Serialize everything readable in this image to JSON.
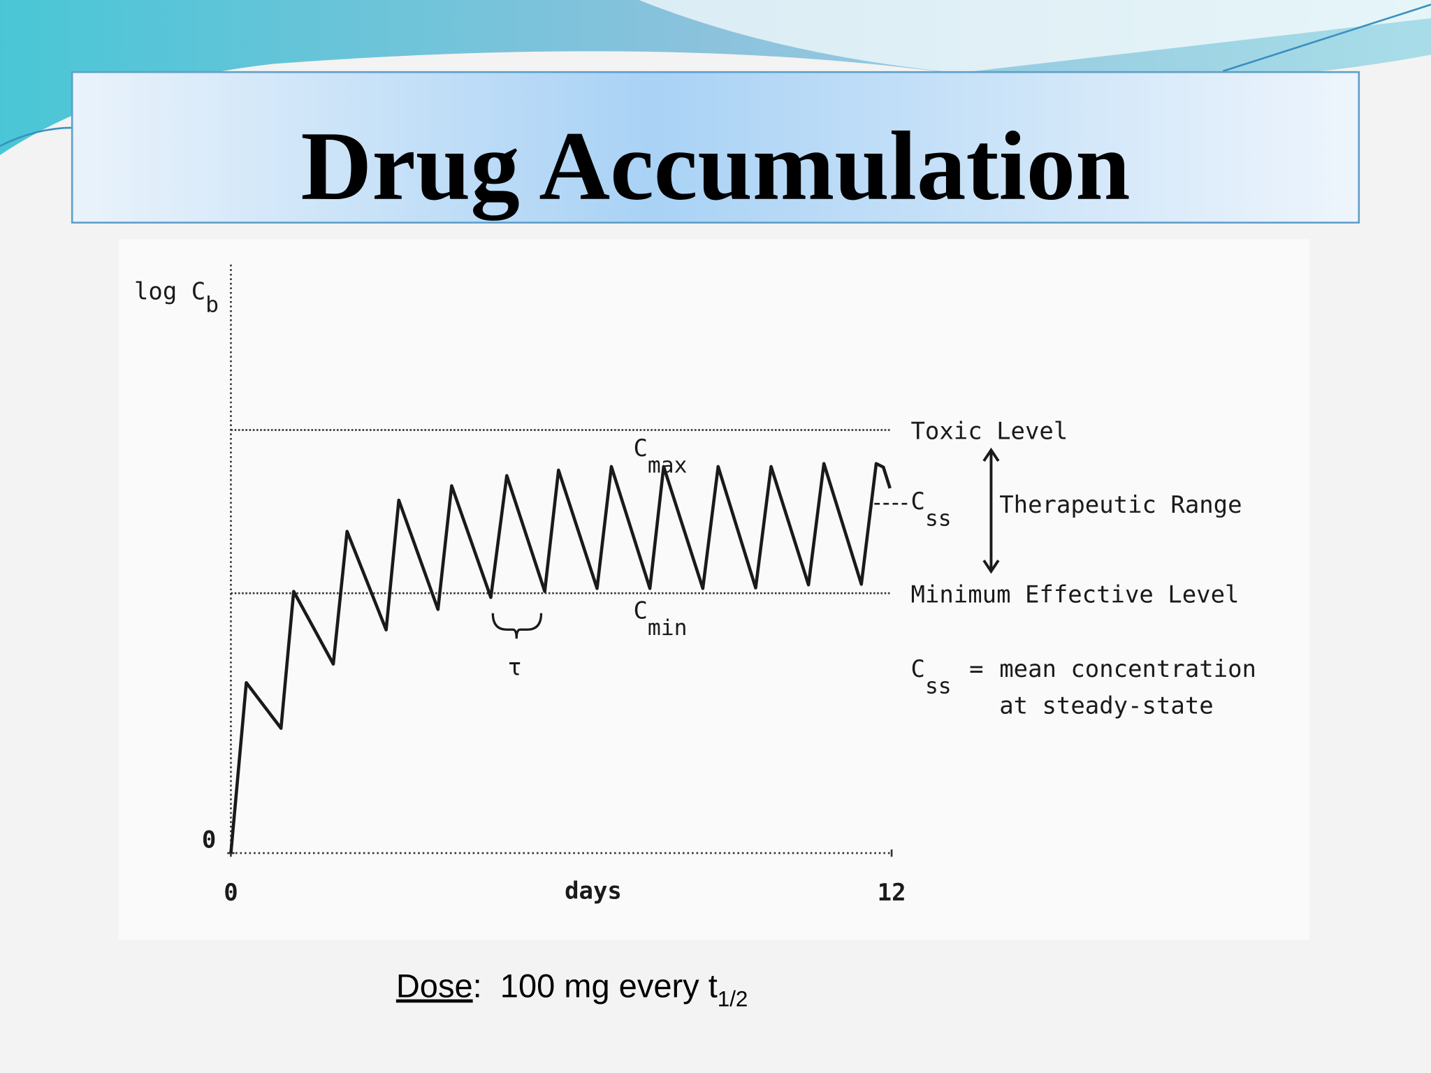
{
  "slide": {
    "title": "Drug Accumulation",
    "footnote": {
      "underlined": "Dose",
      "text": ":  100 mg every t",
      "sub": "1/2"
    }
  },
  "chart_data": {
    "type": "line",
    "y_label": {
      "text": "log C",
      "sub": "b"
    },
    "x_label": "days",
    "xlim": [
      0,
      12
    ],
    "xticks": [
      0,
      12
    ],
    "ylim": [
      0,
      9
    ],
    "yticks": [
      0
    ],
    "x": [
      0,
      0.28,
      0.91,
      1.14,
      1.86,
      2.11,
      2.82,
      3.05,
      3.76,
      4.01,
      4.72,
      5.01,
      5.7,
      5.95,
      6.65,
      6.91,
      7.61,
      7.86,
      8.57,
      8.85,
      9.53,
      9.81,
      10.49,
      10.77,
      11.45,
      11.72,
      11.85,
      11.97
    ],
    "series": [
      {
        "color": "#1a1a1a",
        "values": [
          0,
          2.84,
          2.08,
          4.36,
          3.15,
          5.36,
          3.72,
          5.88,
          4.06,
          6.12,
          4.26,
          6.29,
          4.36,
          6.38,
          4.41,
          6.44,
          4.41,
          6.44,
          4.41,
          6.44,
          4.42,
          6.44,
          4.47,
          6.49,
          4.48,
          6.49,
          6.43,
          6.08
        ]
      }
    ],
    "reference_lines": [
      {
        "label": "Toxic Level",
        "value": 7.05
      },
      {
        "label": "Minimum Effective Level",
        "value": 4.33
      }
    ],
    "css": {
      "text": "C",
      "sub": "ss",
      "value": 5.82
    },
    "therapeutic_range": "Therapeutic Range",
    "cmax": {
      "text": "C",
      "sub": "max"
    },
    "cmin": {
      "text": "C",
      "sub": "min"
    },
    "tau": "τ",
    "definition": {
      "text": "C",
      "sub": "ss",
      "equals": "=",
      "lines": [
        "mean concentration",
        "at steady-state"
      ]
    }
  }
}
